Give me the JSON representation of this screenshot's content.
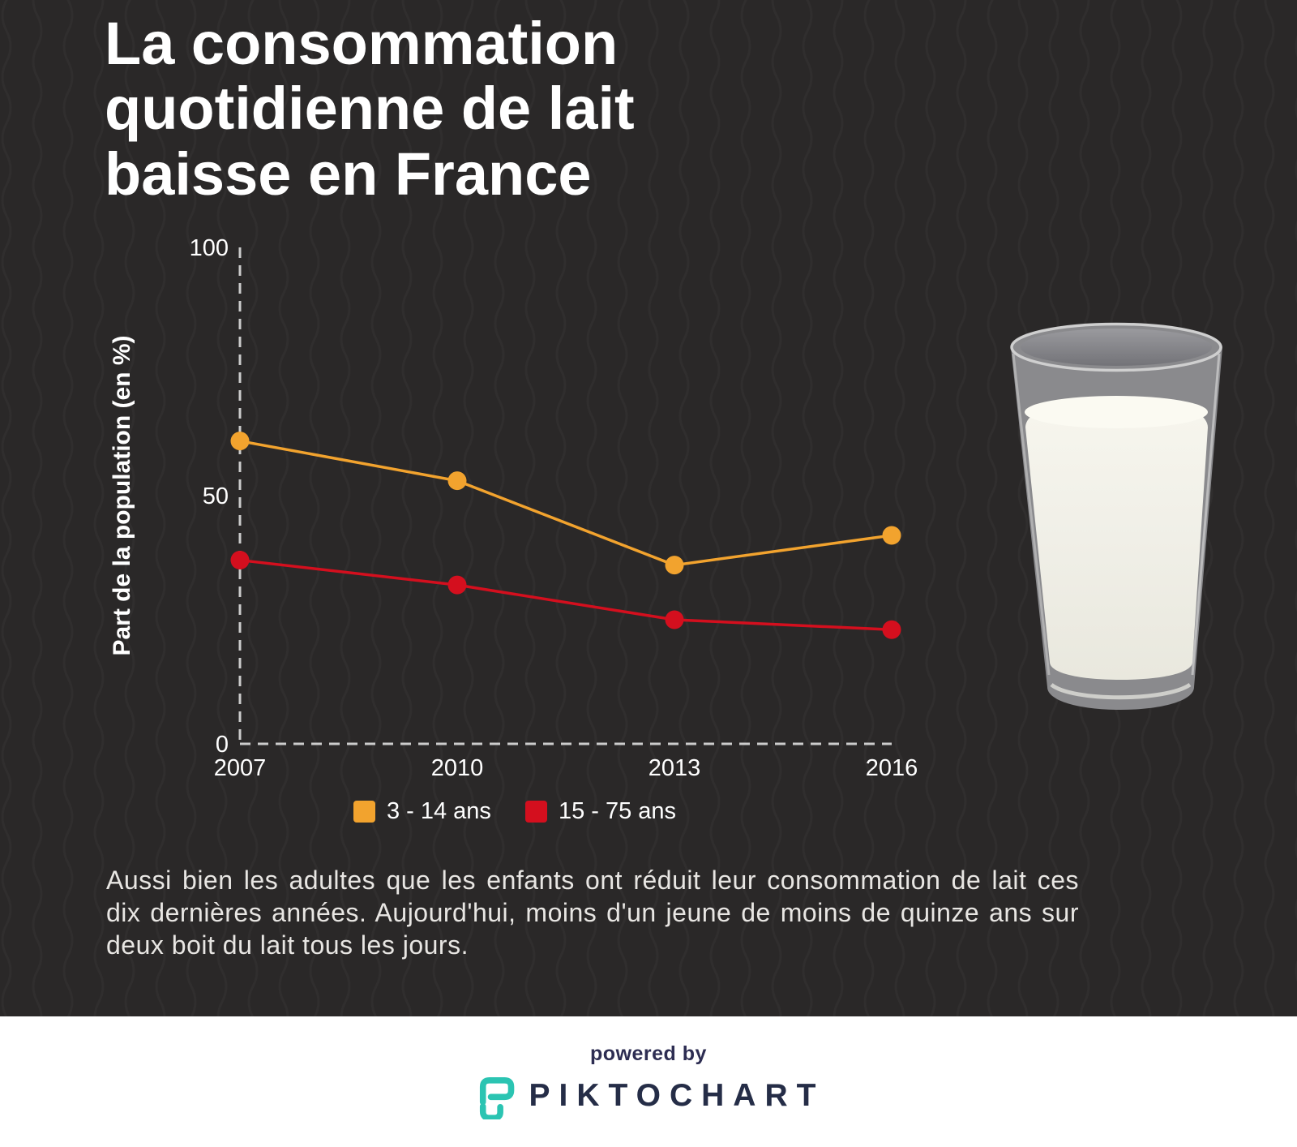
{
  "title": "La consommation quotidienne de lait baisse en France",
  "chart_data": {
    "type": "line",
    "x": [
      "2007",
      "2010",
      "2013",
      "2016"
    ],
    "series": [
      {
        "name": "3 - 14 ans",
        "color": "#F2A32E",
        "values": [
          61,
          53,
          36,
          42
        ]
      },
      {
        "name": "15 - 75 ans",
        "color": "#D40F1E",
        "values": [
          37,
          32,
          25,
          23
        ]
      }
    ],
    "title": "",
    "xlabel": "",
    "ylabel": "Part de la population (en %)",
    "yticks": [
      0,
      50,
      100
    ],
    "ylim": [
      0,
      100
    ],
    "grid": "dashed axes only (left and bottom), no gridlines",
    "legend_position": "bottom"
  },
  "caption": "Aussi bien les adultes que les enfants ont réduit leur consommation de lait ces dix dernières années. Aujourd'hui, moins d'un jeune de moins de quinze ans sur deux boit du lait tous les jours.",
  "images": {
    "milk_glass_alt": "glass of milk"
  },
  "footer": {
    "powered_by": "powered by",
    "brand_name": "PIKTOCHART"
  },
  "colors": {
    "background": "#2A2828",
    "pattern_line": "#343131",
    "accent_orange": "#F2A32E",
    "accent_red": "#D40F1E",
    "axis_dash": "#CCCCCC",
    "text_white": "#FFFFFF",
    "caption_text": "#E8E6E3",
    "footer_background": "#FFFFFF",
    "brand_navy": "#252D47",
    "brand_teal": "#2BC4B2"
  }
}
